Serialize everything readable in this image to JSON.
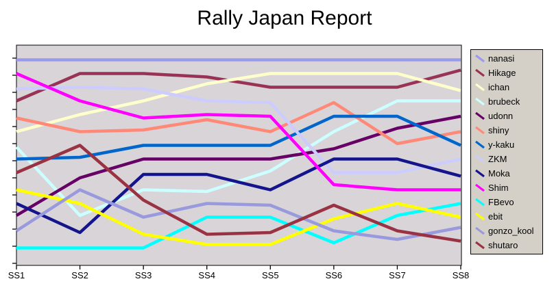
{
  "title": "Rally Japan Report",
  "chart_data": {
    "type": "line",
    "title": "Rally Japan Report",
    "x_categories": [
      "SS1",
      "SS2",
      "SS3",
      "SS4",
      "SS5",
      "SS6",
      "SS7",
      "SS8"
    ],
    "xlabel": "",
    "ylabel": "",
    "y_axis_note": "13 unlabeled ticks; values estimated in tick units (1 = top tick, 13 = bottom tick)",
    "ylim": [
      0.24,
      13.12
    ],
    "y_ticks": [
      1,
      2,
      3,
      4,
      5,
      6,
      7,
      8,
      9,
      10,
      11,
      12,
      13
    ],
    "grid": false,
    "legend_position": "right",
    "plot_background": "#d8d4d8",
    "legend_background": "#d4d0c8",
    "axis_color": "#000000",
    "series": [
      {
        "name": "nanasi",
        "color": "#9999ee",
        "values": [
          1.1,
          1.1,
          1.1,
          1.1,
          1.1,
          1.1,
          1.1,
          1.1
        ]
      },
      {
        "name": "Hikage",
        "color": "#993355",
        "values": [
          3.5,
          1.9,
          1.9,
          2.1,
          2.7,
          2.7,
          2.7,
          1.7
        ]
      },
      {
        "name": "ichan",
        "color": "#ffffcc",
        "values": [
          5.3,
          4.3,
          3.5,
          2.5,
          1.9,
          1.9,
          1.9,
          2.9
        ]
      },
      {
        "name": "brubeck",
        "color": "#ccffff",
        "values": [
          6.2,
          10.2,
          8.7,
          8.8,
          7.6,
          5.3,
          3.5,
          3.5
        ]
      },
      {
        "name": "udonn",
        "color": "#660066",
        "values": [
          10.2,
          8.0,
          6.9,
          6.9,
          6.9,
          6.3,
          5.1,
          4.4
        ]
      },
      {
        "name": "shiny",
        "color": "#ff8877",
        "values": [
          4.5,
          5.3,
          5.2,
          4.6,
          5.3,
          3.6,
          6.0,
          5.3
        ]
      },
      {
        "name": "y-kaku",
        "color": "#0066cc",
        "values": [
          6.9,
          6.8,
          6.1,
          6.1,
          6.1,
          4.4,
          4.4,
          6.1
        ]
      },
      {
        "name": "ZKM",
        "color": "#ccccff",
        "values": [
          2.8,
          2.7,
          2.8,
          3.5,
          3.6,
          7.7,
          7.7,
          6.9
        ]
      },
      {
        "name": "Moka",
        "color": "#14148c",
        "values": [
          9.5,
          11.2,
          7.8,
          7.8,
          8.7,
          6.9,
          6.9,
          7.9
        ]
      },
      {
        "name": "Shim",
        "color": "#ff00ff",
        "values": [
          1.9,
          3.5,
          4.5,
          4.3,
          4.4,
          8.4,
          8.7,
          8.7
        ]
      },
      {
        "name": "FBevo",
        "color": "#00ffff",
        "values": [
          12.1,
          12.1,
          12.1,
          10.3,
          10.3,
          11.8,
          10.2,
          9.5
        ]
      },
      {
        "name": "ebit",
        "color": "#ffff00",
        "values": [
          8.7,
          9.5,
          11.3,
          11.9,
          11.9,
          10.4,
          9.5,
          10.3
        ]
      },
      {
        "name": "gonzo_kool",
        "color": "#9999dd",
        "values": [
          11.1,
          8.7,
          10.3,
          9.5,
          9.6,
          11.1,
          11.6,
          10.9
        ]
      },
      {
        "name": "shutaro",
        "color": "#993344",
        "values": [
          7.7,
          6.1,
          9.3,
          11.3,
          11.2,
          9.6,
          11.1,
          11.7
        ]
      }
    ]
  }
}
